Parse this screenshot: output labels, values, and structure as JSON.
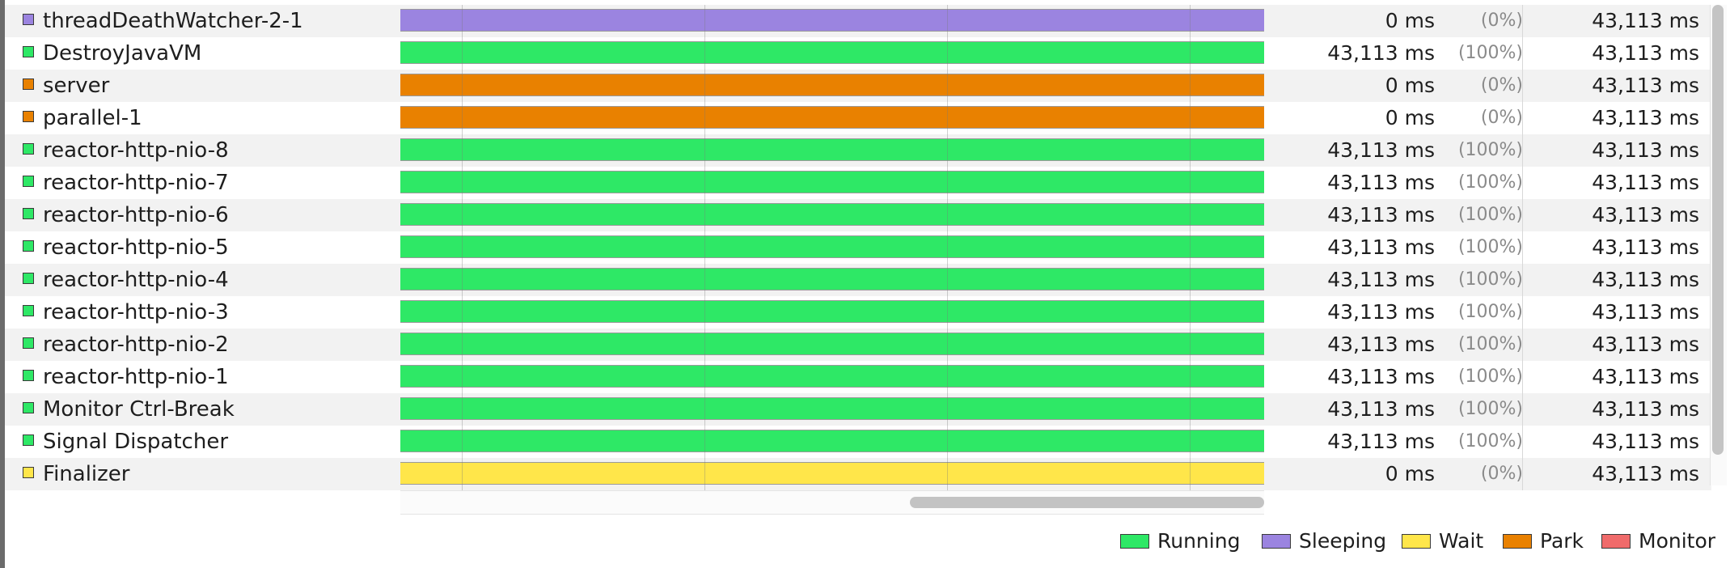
{
  "threads": [
    {
      "name": "threadDeathWatcher-2-1",
      "state": "Sleeping",
      "color": "#9b84e0",
      "time": "0 ms",
      "percent": "(0%)",
      "total": "43,113 ms"
    },
    {
      "name": "DestroyJavaVM",
      "state": "Running",
      "color": "#2ee866",
      "time": "43,113 ms",
      "percent": "(100%)",
      "total": "43,113 ms"
    },
    {
      "name": "server",
      "state": "Park",
      "color": "#e98100",
      "time": "0 ms",
      "percent": "(0%)",
      "total": "43,113 ms"
    },
    {
      "name": "parallel-1",
      "state": "Park",
      "color": "#e98100",
      "time": "0 ms",
      "percent": "(0%)",
      "total": "43,113 ms"
    },
    {
      "name": "reactor-http-nio-8",
      "state": "Running",
      "color": "#2ee866",
      "time": "43,113 ms",
      "percent": "(100%)",
      "total": "43,113 ms"
    },
    {
      "name": "reactor-http-nio-7",
      "state": "Running",
      "color": "#2ee866",
      "time": "43,113 ms",
      "percent": "(100%)",
      "total": "43,113 ms"
    },
    {
      "name": "reactor-http-nio-6",
      "state": "Running",
      "color": "#2ee866",
      "time": "43,113 ms",
      "percent": "(100%)",
      "total": "43,113 ms"
    },
    {
      "name": "reactor-http-nio-5",
      "state": "Running",
      "color": "#2ee866",
      "time": "43,113 ms",
      "percent": "(100%)",
      "total": "43,113 ms"
    },
    {
      "name": "reactor-http-nio-4",
      "state": "Running",
      "color": "#2ee866",
      "time": "43,113 ms",
      "percent": "(100%)",
      "total": "43,113 ms"
    },
    {
      "name": "reactor-http-nio-3",
      "state": "Running",
      "color": "#2ee866",
      "time": "43,113 ms",
      "percent": "(100%)",
      "total": "43,113 ms"
    },
    {
      "name": "reactor-http-nio-2",
      "state": "Running",
      "color": "#2ee866",
      "time": "43,113 ms",
      "percent": "(100%)",
      "total": "43,113 ms"
    },
    {
      "name": "reactor-http-nio-1",
      "state": "Running",
      "color": "#2ee866",
      "time": "43,113 ms",
      "percent": "(100%)",
      "total": "43,113 ms"
    },
    {
      "name": "Monitor Ctrl-Break",
      "state": "Running",
      "color": "#2ee866",
      "time": "43,113 ms",
      "percent": "(100%)",
      "total": "43,113 ms"
    },
    {
      "name": "Signal Dispatcher",
      "state": "Running",
      "color": "#2ee866",
      "time": "43,113 ms",
      "percent": "(100%)",
      "total": "43,113 ms"
    },
    {
      "name": "Finalizer",
      "state": "Wait",
      "color": "#ffe64a",
      "time": "0 ms",
      "percent": "(0%)",
      "total": "43,113 ms"
    }
  ],
  "legend": [
    {
      "label": "Running",
      "color": "#2ee866"
    },
    {
      "label": "Sleeping",
      "color": "#9b84e0"
    },
    {
      "label": "Wait",
      "color": "#ffe64a"
    },
    {
      "label": "Park",
      "color": "#e98100"
    },
    {
      "label": "Monitor",
      "color": "#f06b6b"
    }
  ]
}
